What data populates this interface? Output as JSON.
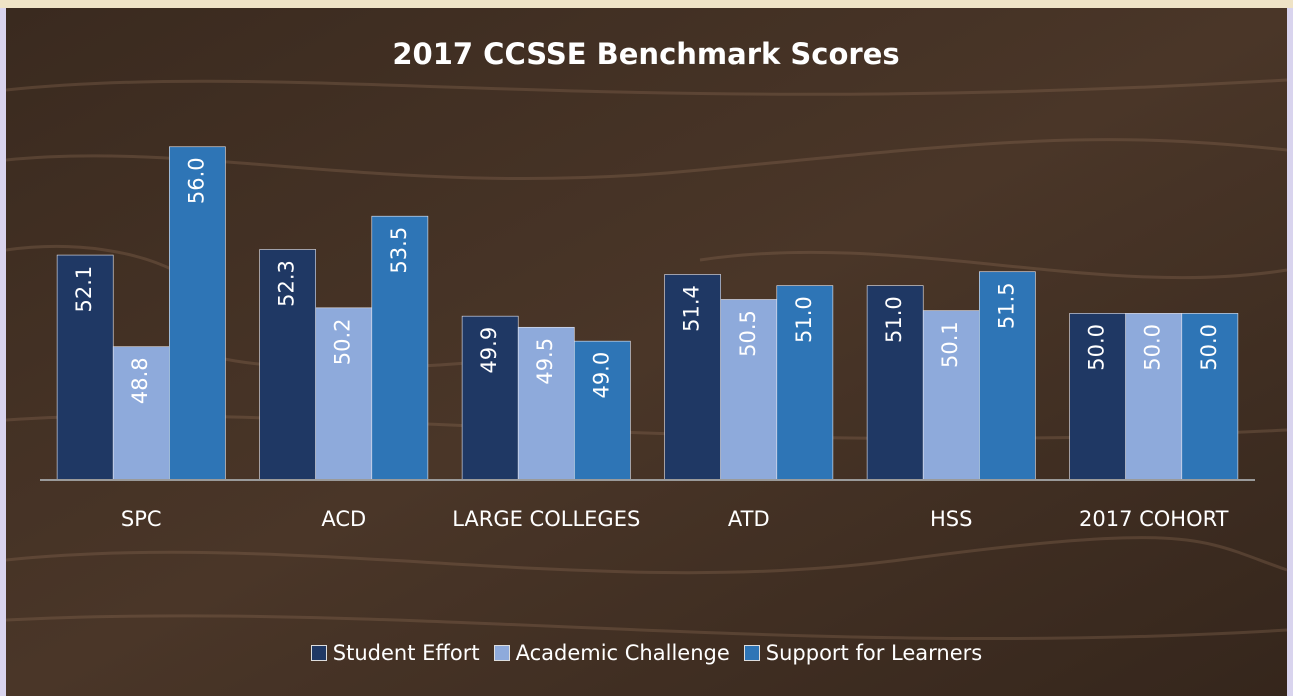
{
  "chart_data": {
    "type": "bar",
    "title": "2017 CCSSE Benchmark Scores",
    "categories": [
      "SPC",
      "ACD",
      "LARGE COLLEGES",
      "ATD",
      "HSS",
      "2017 COHORT"
    ],
    "series": [
      {
        "name": "Student Effort",
        "color": "#1f3864",
        "values": [
          52.1,
          52.3,
          49.9,
          51.4,
          51.0,
          50.0
        ],
        "value_labels": [
          "52.1",
          "52.3",
          "49.9",
          "51.4",
          "51.0",
          "50.0"
        ]
      },
      {
        "name": "Academic Challenge",
        "color": "#8eaadb",
        "values": [
          48.8,
          50.2,
          49.5,
          50.5,
          50.1,
          50.0
        ],
        "value_labels": [
          "48.8",
          "50.2",
          "49.5",
          "50.5",
          "50.1",
          "50.0"
        ]
      },
      {
        "name": "Support for Learners",
        "color": "#2e75b6",
        "values": [
          56.0,
          53.5,
          49.0,
          51.0,
          51.5,
          50.0
        ],
        "value_labels": [
          "56.0",
          "53.5",
          "49.0",
          "51.0",
          "51.5",
          "50.0"
        ]
      }
    ],
    "ylim": [
      44,
      57
    ]
  }
}
